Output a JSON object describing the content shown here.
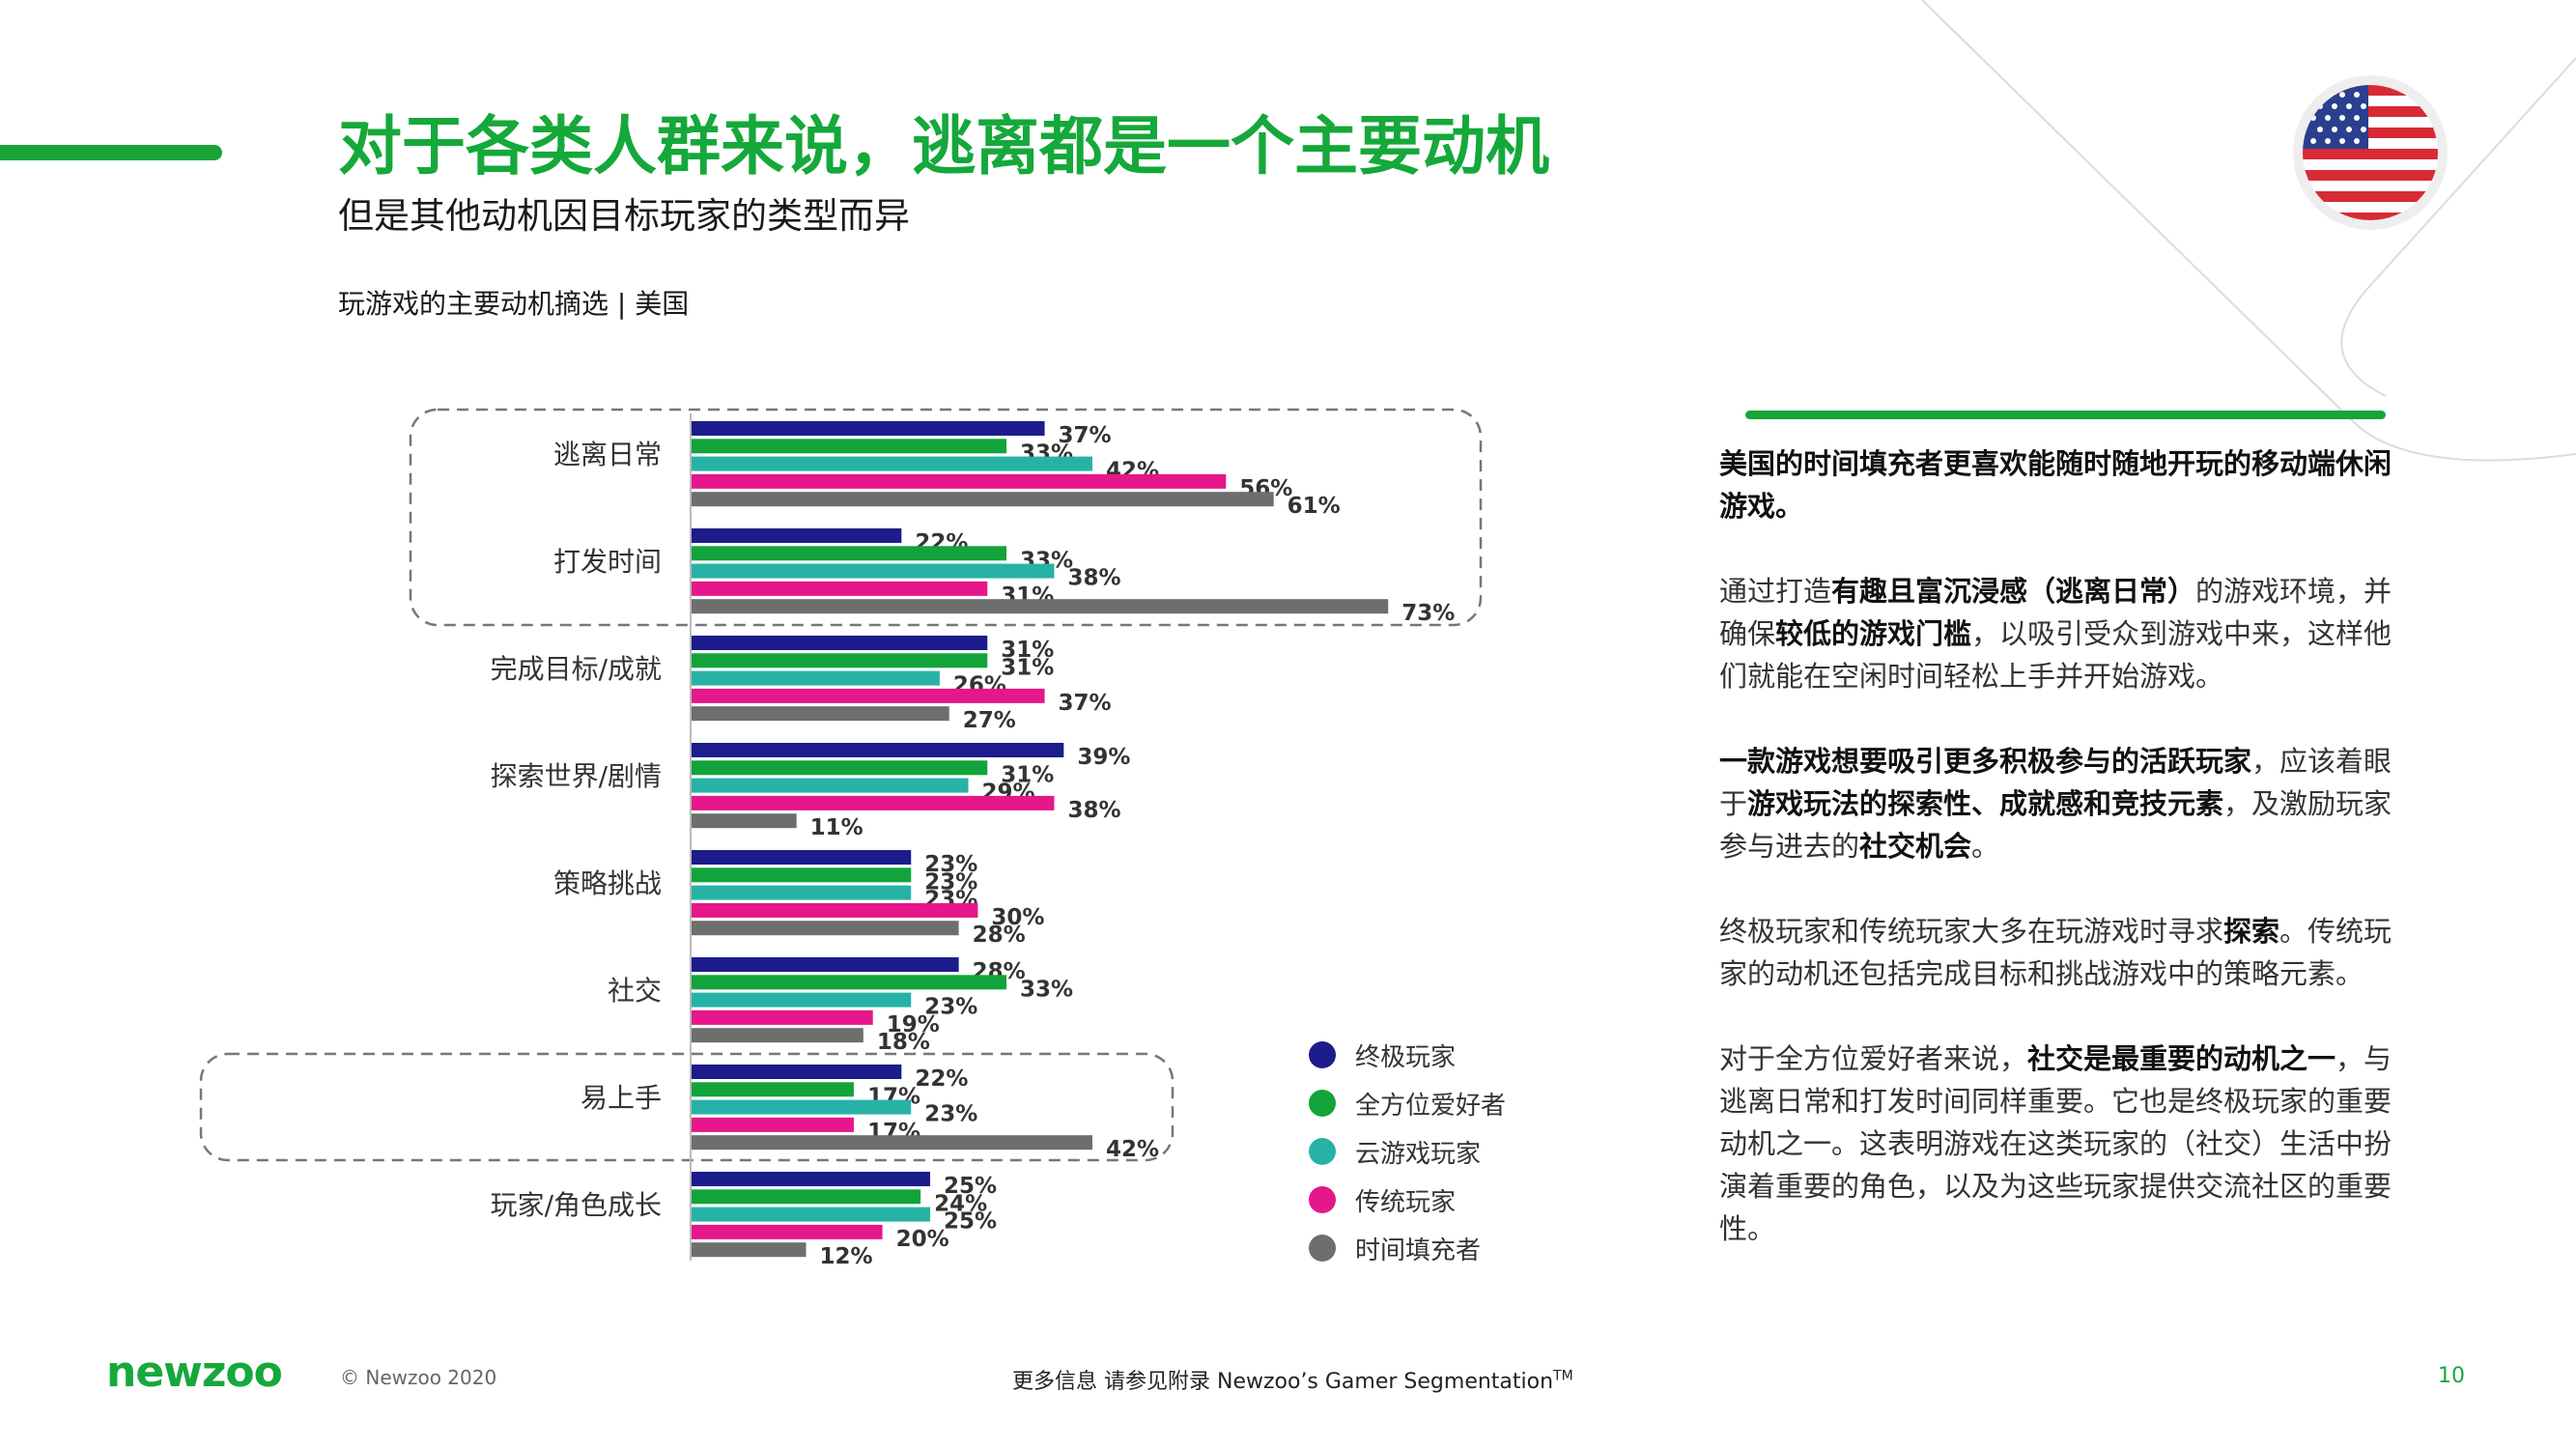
{
  "header": {
    "title": "对于各类人群来说，逃离都是一个主要动机",
    "subtitle": "但是其他动机因目标玩家的类型而异",
    "chart_title": "玩游戏的主要动机摘选 | 美国"
  },
  "flag": {
    "icon": "us-flag-icon"
  },
  "colors": {
    "ultimate": "#1c1c8c",
    "all_round": "#12a43a",
    "cloud": "#26b3a5",
    "traditional": "#e5178b",
    "time_filler": "#6e6e6e",
    "brand_green": "#15a83a"
  },
  "chart_data": {
    "type": "bar",
    "orientation": "horizontal",
    "title": "玩游戏的主要动机摘选 | 美国",
    "categories": [
      "逃离日常",
      "打发时间",
      "完成目标/成就",
      "探索世界/剧情",
      "策略挑战",
      "社交",
      "易上手",
      "玩家/角色成长"
    ],
    "series": [
      {
        "name": "终极玩家",
        "color": "#1c1c8c",
        "values": [
          37,
          22,
          31,
          39,
          23,
          28,
          22,
          25
        ]
      },
      {
        "name": "全方位爱好者",
        "color": "#12a43a",
        "values": [
          33,
          33,
          31,
          31,
          23,
          33,
          17,
          24
        ]
      },
      {
        "name": "云游戏玩家",
        "color": "#26b3a5",
        "values": [
          42,
          38,
          26,
          29,
          23,
          23,
          23,
          25
        ]
      },
      {
        "name": "传统玩家",
        "color": "#e5178b",
        "values": [
          56,
          31,
          37,
          38,
          30,
          19,
          17,
          20
        ]
      },
      {
        "name": "时间填充者",
        "color": "#6e6e6e",
        "values": [
          61,
          73,
          27,
          11,
          28,
          18,
          42,
          12
        ]
      }
    ],
    "value_suffix": "%",
    "highlighted_groups": [
      [
        "逃离日常",
        "打发时间"
      ],
      [
        "易上手"
      ]
    ],
    "xlim": [
      0,
      80
    ],
    "legend_position": "right"
  },
  "panel": {
    "p1": [
      {
        "t": "美国的时间填充者更喜欢能随时随地开玩的移动端休闲游戏。",
        "b": true
      }
    ],
    "p2": [
      {
        "t": "通过打造",
        "b": false
      },
      {
        "t": "有趣且富沉浸感（逃离日常）",
        "b": true
      },
      {
        "t": "的游戏环境，并确保",
        "b": false
      },
      {
        "t": "较低的游戏门槛",
        "b": true
      },
      {
        "t": "，以吸引受众到游戏中来，这样他们就能在空闲时间轻松上手并开始游戏。",
        "b": false
      }
    ],
    "p3": [
      {
        "t": "一款游戏想要吸引更多积极参与的活跃玩家",
        "b": true
      },
      {
        "t": "，应该着眼于",
        "b": false
      },
      {
        "t": "游戏玩法的探索性、成就感和竞技元素",
        "b": true
      },
      {
        "t": "，及激励玩家参与进去的",
        "b": false
      },
      {
        "t": "社交机会",
        "b": true
      },
      {
        "t": "。",
        "b": false
      }
    ],
    "p4": [
      {
        "t": "终极玩家和传统玩家大多在玩游戏时寻求",
        "b": false
      },
      {
        "t": "探索",
        "b": true
      },
      {
        "t": "。传统玩家的动机还包括完成目标和挑战游戏中的策略元素。",
        "b": false
      }
    ],
    "p5": [
      {
        "t": "对于全方位爱好者来说，",
        "b": false
      },
      {
        "t": "社交是最重要的动机之一",
        "b": true
      },
      {
        "t": "，与逃离日常和打发时间同样重要。它也是终极玩家的重要动机之一。这表明游戏在这类玩家的（社交）生活中扮演着重要的角色，以及为这些玩家提供交流社区的重要性。",
        "b": false
      }
    ]
  },
  "footer": {
    "logo": "newzoo",
    "copyright": "© Newzoo 2020",
    "more_info": "更多信息 请参见附录 Newzoo’s Gamer Segmentation",
    "tm": "TM",
    "page": "10"
  }
}
